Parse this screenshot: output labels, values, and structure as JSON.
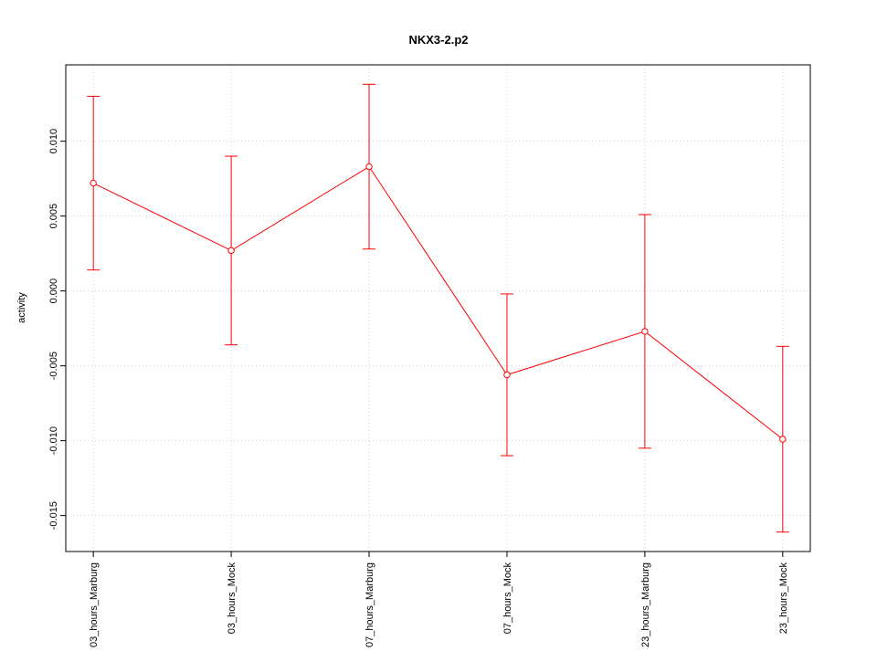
{
  "chart_data": {
    "type": "line",
    "title": "NKX3-2.p2",
    "y_label": "activity",
    "categories": [
      "03_hours_Marburg",
      "03_hours_Mock",
      "07_hours_Marburg",
      "07_hours_Mock",
      "23_hours_Marburg",
      "23_hours_Mock"
    ],
    "series": [
      {
        "name": "activity",
        "color": "#ff0000",
        "values": [
          0.0072,
          0.0027,
          0.0083,
          -0.0056,
          -0.0027,
          -0.0099
        ],
        "errors": [
          0.0058,
          0.0063,
          0.0055,
          0.0054,
          0.0078,
          0.0062
        ]
      }
    ],
    "ylim": [
      -0.0174,
      0.0151
    ],
    "yticks": [
      {
        "value": -0.015,
        "label": "-0.015"
      },
      {
        "value": -0.01,
        "label": "-0.010"
      },
      {
        "value": -0.005,
        "label": "-0.005"
      },
      {
        "value": 0,
        "label": "0.000"
      },
      {
        "value": 0.005,
        "label": "0.005"
      },
      {
        "value": 0.01,
        "label": "0.010"
      }
    ],
    "grid": true
  }
}
